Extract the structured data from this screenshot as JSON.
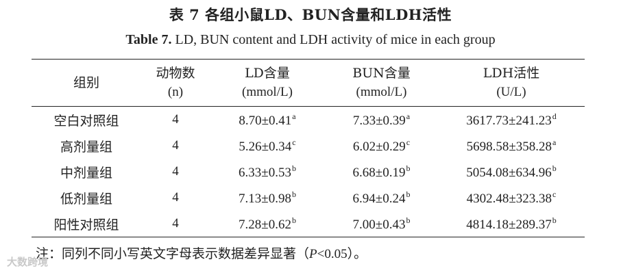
{
  "title_zh": "表 7 各组小鼠LD、BUN含量和LDH活性",
  "title_en_lead": "Table 7.",
  "title_en_rest": "LD, BUN content and LDH activity of mice in each group",
  "header": {
    "group": "组别",
    "animals": "动物数",
    "animals_unit": "(n)",
    "ld": "LD含量",
    "ld_unit": "(mmol/L)",
    "bun": "BUN含量",
    "bun_unit": "(mmol/L)",
    "ldh": "LDH活性",
    "ldh_unit": "(U/L)"
  },
  "rows": [
    {
      "group": "空白对照组",
      "n": "4",
      "ld": "8.70±0.41",
      "ld_sup": "a",
      "bun": "7.33±0.39",
      "bun_sup": "a",
      "ldh": "3617.73±241.23",
      "ldh_sup": "d"
    },
    {
      "group": "高剂量组",
      "n": "4",
      "ld": "5.26±0.34",
      "ld_sup": "c",
      "bun": "6.02±0.29",
      "bun_sup": "c",
      "ldh": "5698.58±358.28",
      "ldh_sup": "a"
    },
    {
      "group": "中剂量组",
      "n": "4",
      "ld": "6.33±0.53",
      "ld_sup": "b",
      "bun": "6.68±0.19",
      "bun_sup": "b",
      "ldh": "5054.08±634.96",
      "ldh_sup": "b"
    },
    {
      "group": "低剂量组",
      "n": "4",
      "ld": "7.13±0.98",
      "ld_sup": "b",
      "bun": "6.94±0.24",
      "bun_sup": "b",
      "ldh": "4302.48±323.38",
      "ldh_sup": "c"
    },
    {
      "group": "阳性对照组",
      "n": "4",
      "ld": "7.28±0.62",
      "ld_sup": "b",
      "bun": "7.00±0.43",
      "bun_sup": "b",
      "ldh": "4814.18±289.37",
      "ldh_sup": "b"
    }
  ],
  "note": {
    "prefix": "注：同列不同小写英文字母表示数据差异显著（",
    "p_symbol": "P",
    "suffix": "<0.05）。"
  },
  "watermark": "大数跨境"
}
